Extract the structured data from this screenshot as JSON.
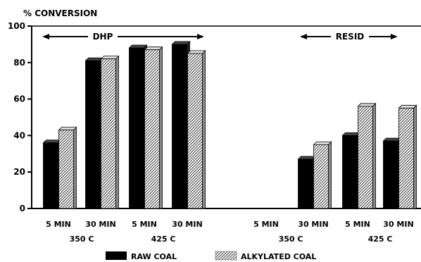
{
  "chart_data": {
    "type": "bar",
    "ylabel": "% CONVERSION",
    "ylim": [
      0,
      100
    ],
    "yticks": [
      0,
      20,
      40,
      60,
      80,
      100
    ],
    "categories": [
      "5 MIN",
      "30 MIN",
      "5 MIN",
      "30 MIN",
      "5 MIN",
      "30 MIN",
      "5 MIN",
      "30 MIN"
    ],
    "group_labels": [
      "350 C",
      "425 C",
      "350 C",
      "425 C"
    ],
    "sections": [
      "DHP",
      "RESID"
    ],
    "series": [
      {
        "name": "RAW COAL",
        "values": [
          36,
          81,
          88,
          90,
          0,
          27,
          40,
          37
        ],
        "color": "#000000"
      },
      {
        "name": "ALKYLATED COAL",
        "values": [
          43,
          82,
          87,
          85,
          0,
          35,
          56,
          55
        ],
        "color": "#bbbbbb"
      }
    ],
    "legend": [
      "RAW COAL",
      "ALKYLATED COAL"
    ]
  }
}
